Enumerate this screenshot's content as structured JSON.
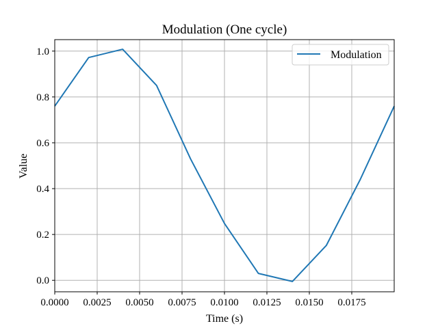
{
  "chart_data": {
    "type": "line",
    "title": "Modulation (One cycle)",
    "xlabel": "Time (s)",
    "ylabel": "Value",
    "xlim": [
      0.0,
      0.02
    ],
    "ylim": [
      -0.05,
      1.05
    ],
    "grid": true,
    "legend_position": "top-right",
    "x_ticks": [
      0.0,
      0.0025,
      0.005,
      0.0075,
      0.01,
      0.0125,
      0.015,
      0.0175
    ],
    "x_tick_labels": [
      "0.0000",
      "0.0025",
      "0.0050",
      "0.0075",
      "0.0100",
      "0.0125",
      "0.0150",
      "0.0175"
    ],
    "y_ticks": [
      0.0,
      0.2,
      0.4,
      0.6,
      0.8,
      1.0
    ],
    "y_tick_labels": [
      "0.0",
      "0.2",
      "0.4",
      "0.6",
      "0.8",
      "1.0"
    ],
    "series": [
      {
        "name": "Modulation",
        "color": "#1f77b4",
        "x": [
          0.0,
          0.002,
          0.004,
          0.006,
          0.008,
          0.01,
          0.012,
          0.014,
          0.016,
          0.018,
          0.02
        ],
        "values": [
          0.76,
          0.972,
          1.008,
          0.85,
          0.53,
          0.248,
          0.03,
          -0.005,
          0.152,
          0.44,
          0.76
        ]
      }
    ]
  }
}
